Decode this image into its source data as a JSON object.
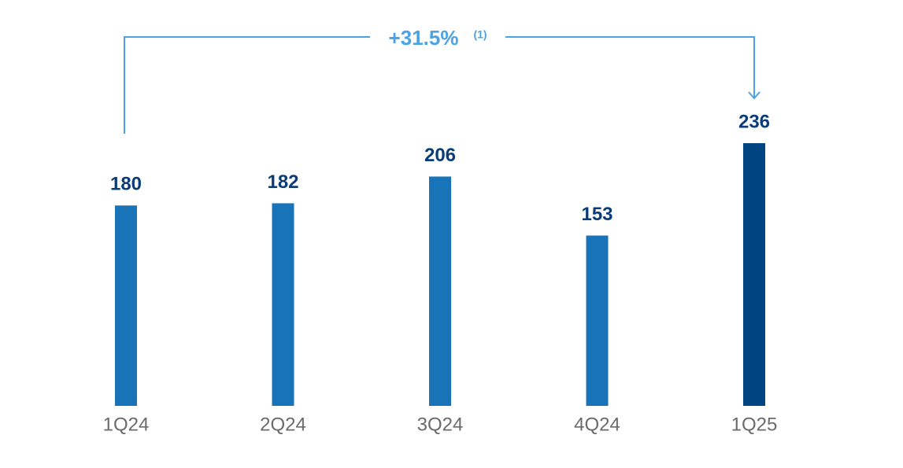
{
  "chart_data": {
    "type": "bar",
    "categories": [
      "1Q24",
      "2Q24",
      "3Q24",
      "4Q24",
      "1Q25"
    ],
    "values": [
      180,
      182,
      206,
      153,
      236
    ],
    "colors": [
      "#1973b8",
      "#1973b8",
      "#1973b8",
      "#1973b8",
      "#004481"
    ],
    "annotation": {
      "text": "+31.5%",
      "note": "(1)"
    }
  }
}
